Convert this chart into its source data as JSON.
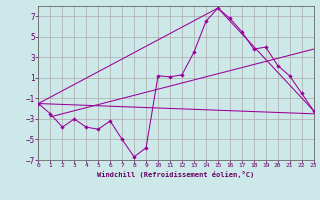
{
  "background_color": "#cce8e8",
  "grid_color": "#aaaaaa",
  "line_color": "#990099",
  "spine_color": "#666666",
  "label_color": "#660066",
  "xlim": [
    0,
    23
  ],
  "ylim": [
    -7,
    8
  ],
  "xlabel": "Windchill (Refroidissement éolien,°C)",
  "xticks": [
    0,
    1,
    2,
    3,
    4,
    5,
    6,
    7,
    8,
    9,
    10,
    11,
    12,
    13,
    14,
    15,
    16,
    17,
    18,
    19,
    20,
    21,
    22,
    23
  ],
  "yticks": [
    -7,
    -5,
    -3,
    -1,
    1,
    3,
    5,
    7
  ],
  "series": [
    [
      0,
      -1.5
    ],
    [
      1,
      -2.5
    ],
    [
      2,
      -3.8
    ],
    [
      3,
      -3.0
    ],
    [
      4,
      -3.8
    ],
    [
      5,
      -4.0
    ],
    [
      6,
      -3.2
    ],
    [
      7,
      -5.0
    ],
    [
      8,
      -6.7
    ],
    [
      9,
      -5.8
    ],
    [
      10,
      1.2
    ],
    [
      11,
      1.1
    ],
    [
      12,
      1.3
    ],
    [
      13,
      3.5
    ],
    [
      14,
      6.5
    ],
    [
      15,
      7.8
    ],
    [
      16,
      6.8
    ],
    [
      17,
      5.5
    ],
    [
      18,
      3.8
    ],
    [
      19,
      4.0
    ],
    [
      20,
      2.2
    ],
    [
      21,
      1.2
    ],
    [
      22,
      -0.5
    ],
    [
      23,
      -2.2
    ]
  ],
  "line2": [
    [
      0,
      -1.5
    ],
    [
      23,
      -2.5
    ]
  ],
  "line3": [
    [
      0,
      -1.5
    ],
    [
      15,
      7.8
    ],
    [
      23,
      -2.2
    ]
  ],
  "line4": [
    [
      1,
      -2.8
    ],
    [
      23,
      3.8
    ]
  ]
}
